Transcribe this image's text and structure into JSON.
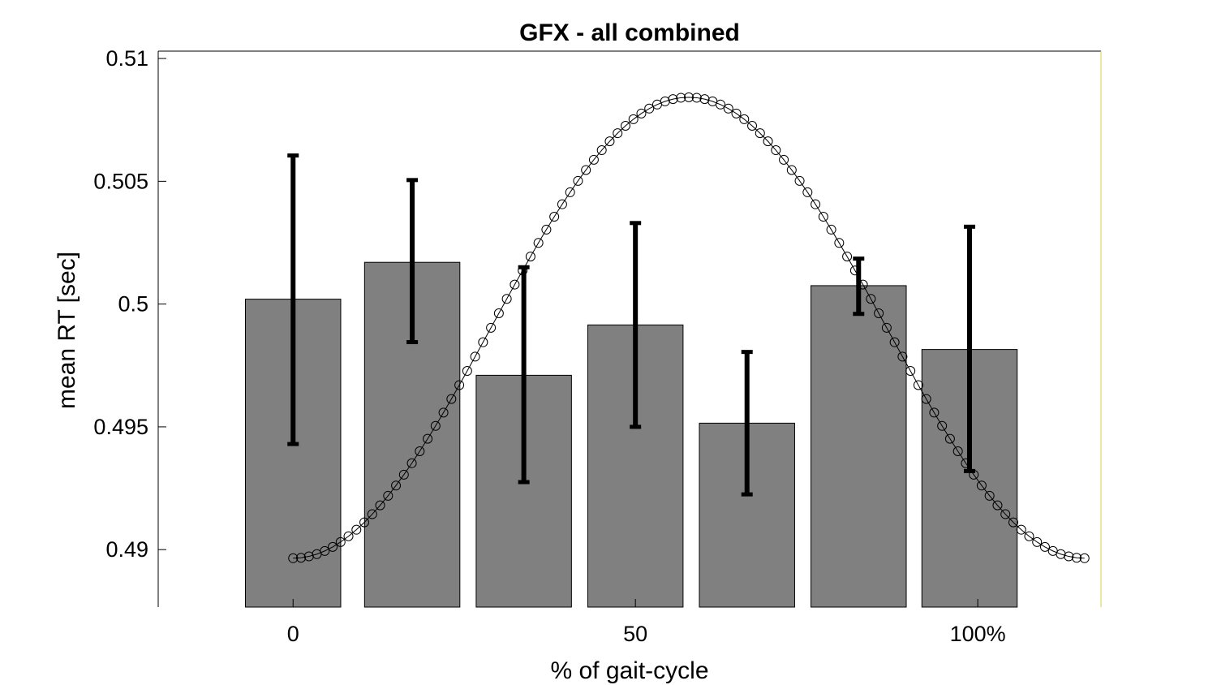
{
  "chart_data": {
    "type": "bar",
    "title": "GFX - all combined",
    "xlabel": "% of gait-cycle",
    "ylabel": "mean RT [sec]",
    "ylim": [
      0.48766,
      0.5103
    ],
    "xlim": [
      -19.7,
      118
    ],
    "xticks": [
      0,
      50,
      100
    ],
    "xtick_labels": [
      "0",
      "50",
      "100%"
    ],
    "yticks": [
      0.49,
      0.495,
      0.5,
      0.505,
      0.51
    ],
    "ytick_labels": [
      "0.49",
      "0.495",
      "0.5",
      "0.505",
      "0.51"
    ],
    "grid": false,
    "bar_color": "#808080",
    "error_color": "#000000",
    "bars": [
      {
        "x": 0,
        "value": 0.5002,
        "err_low": 0.4943,
        "err_high": 0.50605
      },
      {
        "x": 17.4,
        "value": 0.5017,
        "err_low": 0.49845,
        "err_high": 0.50505
      },
      {
        "x": 33.7,
        "value": 0.4971,
        "err_low": 0.49275,
        "err_high": 0.5015
      },
      {
        "x": 50,
        "value": 0.49915,
        "err_low": 0.495,
        "err_high": 0.5033
      },
      {
        "x": 66.3,
        "value": 0.49515,
        "err_low": 0.49225,
        "err_high": 0.49805
      },
      {
        "x": 82.6,
        "value": 0.50075,
        "err_low": 0.4996,
        "err_high": 0.50185
      },
      {
        "x": 98.8,
        "value": 0.49815,
        "err_low": 0.4932,
        "err_high": 0.50315
      }
    ],
    "curve": {
      "type": "line",
      "marker": "circle",
      "x_start": 0,
      "x_end": 115.6,
      "n_points": 101,
      "y_min": 0.48965,
      "y_max": 0.50842,
      "peak_x": 57.8
    }
  }
}
